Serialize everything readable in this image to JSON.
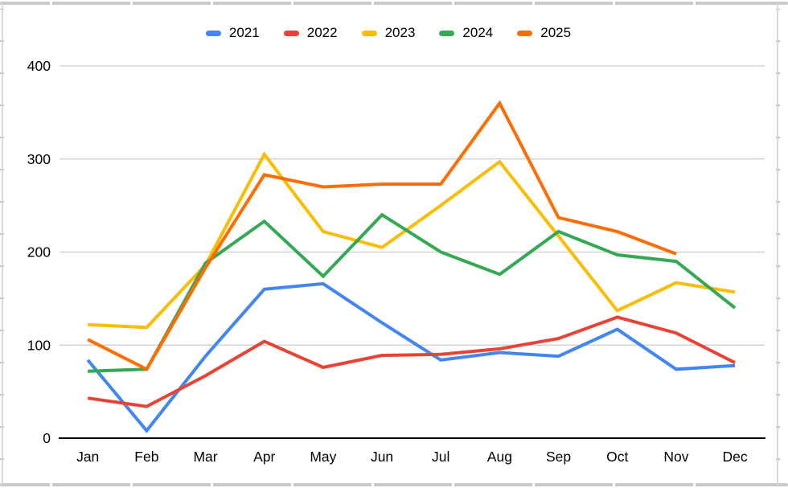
{
  "chart_data": {
    "type": "line",
    "title": "",
    "xlabel": "",
    "ylabel": "",
    "categories": [
      "Jan",
      "Feb",
      "Mar",
      "Apr",
      "May",
      "Jun",
      "Jul",
      "Aug",
      "Sep",
      "Oct",
      "Nov",
      "Dec"
    ],
    "series": [
      {
        "name": "2021",
        "color": "#4285F4",
        "values": [
          84,
          8,
          88,
          160,
          166,
          124,
          84,
          92,
          88,
          117,
          74,
          78
        ]
      },
      {
        "name": "2022",
        "color": "#EA4335",
        "values": [
          43,
          34,
          67,
          104,
          76,
          89,
          90,
          96,
          107,
          130,
          113,
          81
        ]
      },
      {
        "name": "2023",
        "color": "#FBBC04",
        "values": [
          122,
          119,
          186,
          305,
          222,
          205,
          250,
          297,
          217,
          137,
          167,
          157
        ]
      },
      {
        "name": "2024",
        "color": "#34A853",
        "values": [
          72,
          74,
          188,
          233,
          174,
          240,
          200,
          176,
          222,
          197,
          190,
          140
        ]
      },
      {
        "name": "2025",
        "color": "#FF6D01",
        "values": [
          106,
          74,
          183,
          283,
          270,
          273,
          273,
          360,
          237,
          222,
          198,
          null
        ]
      }
    ],
    "y_ticks": [
      0,
      100,
      200,
      300,
      400
    ],
    "ylim": [
      0,
      400
    ],
    "grid": true,
    "legend_position": "top",
    "colors": {
      "gridline": "#cccccc",
      "axis_line": "#000000",
      "label_text": "#000000"
    }
  }
}
